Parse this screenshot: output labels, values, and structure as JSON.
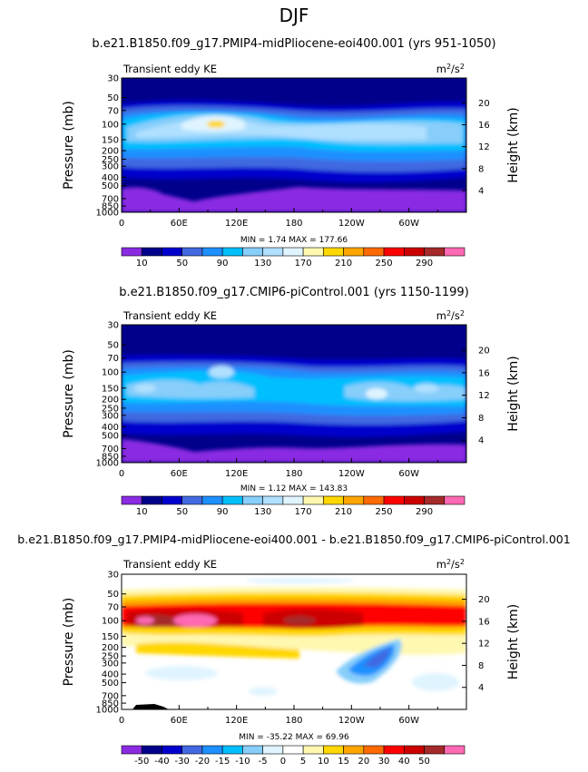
{
  "page": {
    "main_title": "DJF"
  },
  "panels_text": [
    {
      "title": "b.e21.B1850.f09_g17.PMIP4-midPliocene-eoi400.001 (yrs 951-1050)",
      "left_label": "Transient eddy KE",
      "right_label": "m²/s²",
      "minmax": "MIN =    1.74   MAX = 177.66"
    },
    {
      "title": "b.e21.B1850.f09_g17.CMIP6-piControl.001 (yrs 1150-1199)",
      "left_label": "Transient eddy KE",
      "right_label": "m²/s²",
      "minmax": "MIN =    1.12   MAX = 143.83"
    },
    {
      "title": "b.e21.B1850.f09_g17.PMIP4-midPliocene-eoi400.001 - b.e21.B1850.f09_g17.CMIP6-piControl.001",
      "left_label": "Transient eddy KE",
      "right_label": "m²/s²",
      "minmax": "MIN = -35.22   MAX =  69.96"
    }
  ],
  "chart_data": [
    {
      "type": "heatmap",
      "title": "b.e21.B1850.f09_g17.PMIP4-midPliocene-eoi400.001 (yrs 951-1050)",
      "variable": "Transient eddy KE",
      "units": "m²/s²",
      "xlabel": "",
      "ylabel": "Pressure (mb)",
      "y2label": "Height (km)",
      "x_ticks": [
        "0",
        "60E",
        "120E",
        "180",
        "120W",
        "60W"
      ],
      "y_ticks": [
        "30",
        "50",
        "70",
        "100",
        "150",
        "200",
        "250",
        "300",
        "400",
        "500",
        "700",
        "850",
        "1000"
      ],
      "y2_ticks": [
        "20",
        "16",
        "12",
        "8",
        "4"
      ],
      "colorbar_labels": [
        "10",
        "50",
        "90",
        "130",
        "170",
        "210",
        "250",
        "290"
      ],
      "colorbar_levels": [
        10,
        30,
        50,
        70,
        90,
        110,
        130,
        150,
        170,
        190,
        210,
        230,
        250,
        270,
        290
      ],
      "min": 1.74,
      "max": 177.66
    },
    {
      "type": "heatmap",
      "title": "b.e21.B1850.f09_g17.CMIP6-piControl.001 (yrs 1150-1199)",
      "variable": "Transient eddy KE",
      "units": "m²/s²",
      "xlabel": "",
      "ylabel": "Pressure (mb)",
      "y2label": "Height (km)",
      "x_ticks": [
        "0",
        "60E",
        "120E",
        "180",
        "120W",
        "60W"
      ],
      "y_ticks": [
        "30",
        "50",
        "70",
        "100",
        "150",
        "200",
        "250",
        "300",
        "400",
        "500",
        "700",
        "850",
        "1000"
      ],
      "y2_ticks": [
        "20",
        "16",
        "12",
        "8",
        "4"
      ],
      "colorbar_labels": [
        "10",
        "50",
        "90",
        "130",
        "170",
        "210",
        "250",
        "290"
      ],
      "colorbar_levels": [
        10,
        30,
        50,
        70,
        90,
        110,
        130,
        150,
        170,
        190,
        210,
        230,
        250,
        270,
        290
      ],
      "min": 1.12,
      "max": 143.83
    },
    {
      "type": "heatmap",
      "title": "b.e21.B1850.f09_g17.PMIP4-midPliocene-eoi400.001 - b.e21.B1850.f09_g17.CMIP6-piControl.001",
      "variable": "Transient eddy KE",
      "units": "m²/s²",
      "xlabel": "",
      "ylabel": "Pressure (mb)",
      "y2label": "Height (km)",
      "x_ticks": [
        "0",
        "60E",
        "120E",
        "180",
        "120W",
        "60W"
      ],
      "y_ticks": [
        "30",
        "50",
        "70",
        "100",
        "150",
        "200",
        "250",
        "300",
        "400",
        "500",
        "700",
        "850",
        "1000"
      ],
      "y2_ticks": [
        "20",
        "16",
        "12",
        "8",
        "4"
      ],
      "colorbar_labels": [
        "-50",
        "-40",
        "-30",
        "-20",
        "-15",
        "-10",
        "-5",
        "0",
        "5",
        "10",
        "15",
        "20",
        "30",
        "40",
        "50"
      ],
      "colorbar_levels": [
        -50,
        -40,
        -30,
        -20,
        -15,
        -10,
        -5,
        0,
        5,
        10,
        15,
        20,
        30,
        40,
        50
      ],
      "min": -35.22,
      "max": 69.96
    }
  ],
  "colors": {
    "abs_scale": [
      "#8a2be2",
      "#00008b",
      "#0000cd",
      "#4169e1",
      "#1e90ff",
      "#00bfff",
      "#87cefa",
      "#b0e0ff",
      "#e0f4ff",
      "#fff8b0",
      "#ffd700",
      "#ffa500",
      "#ff6a00",
      "#ff0000",
      "#cc0000",
      "#a52a2a",
      "#ff69b4"
    ],
    "diff_scale": [
      "#8a2be2",
      "#00008b",
      "#0000cd",
      "#4169e1",
      "#1e90ff",
      "#00bfff",
      "#87cefa",
      "#e0f4ff",
      "#ffffff",
      "#fff8b0",
      "#ffd700",
      "#ffa500",
      "#ff6a00",
      "#ff0000",
      "#cc0000",
      "#a52a2a",
      "#ff69b4"
    ]
  }
}
